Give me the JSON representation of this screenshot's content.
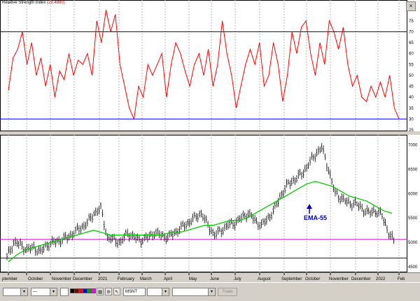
{
  "rsi_title": {
    "name": "Relative Strength Index",
    "value": "(29.4890)"
  },
  "rsi_scale": [
    "80",
    "75",
    "70",
    "65",
    "60",
    "55",
    "50",
    "45",
    "40",
    "35",
    "30",
    "25"
  ],
  "rsi_levels": [
    70,
    30
  ],
  "price_scale": [
    "7000",
    "6500",
    "6000",
    "5500",
    "5000",
    "4500"
  ],
  "price_levels": [
    5060,
    4680
  ],
  "annotation": "EMA-55",
  "months": [
    "ptember",
    "October",
    "November",
    "December",
    "2021",
    "February",
    "March",
    "April",
    "May",
    "June",
    "July",
    "August",
    "September",
    "October",
    "November",
    "December",
    "2022",
    "Feb"
  ],
  "toolbar": {
    "symbol": "MSNT",
    "trade_label": "Trade",
    "window_button": "×"
  },
  "colors": {
    "rsi_line": "#ff0000",
    "ema_line": "#00cc00",
    "level_line": "#0000ff",
    "support_line": "#cc00cc",
    "annotation": "#0000c0"
  },
  "chart_data": [
    {
      "type": "line",
      "title": "Relative Strength Index",
      "series": [
        {
          "name": "Relative Strength Index",
          "values": [
            43,
            58,
            62,
            70,
            55,
            65,
            50,
            58,
            45,
            55,
            40,
            52,
            48,
            60,
            50,
            57,
            55,
            60,
            50,
            75,
            65,
            80,
            70,
            78,
            55,
            45,
            35,
            30,
            45,
            40,
            55,
            50,
            55,
            60,
            40,
            55,
            65,
            60,
            52,
            45,
            55,
            60,
            50,
            62,
            45,
            55,
            75,
            60,
            50,
            35,
            45,
            55,
            62,
            55,
            65,
            45,
            50,
            65,
            55,
            38,
            50,
            70,
            60,
            72,
            75,
            60,
            50,
            65,
            55,
            75,
            70,
            62,
            72,
            55,
            45,
            50,
            40,
            38,
            45,
            40,
            47,
            40,
            50,
            35,
            30
          ]
        }
      ],
      "ylim": [
        25,
        82
      ],
      "levels": [
        70,
        30
      ]
    },
    {
      "type": "line",
      "series": [
        {
          "name": "Price",
          "values": [
            4700,
            5000,
            4950,
            4850,
            4900,
            4800,
            4950,
            5000,
            5050,
            5100,
            5200,
            5300,
            5400,
            5600,
            5700,
            5100,
            5050,
            5000,
            5200,
            5100,
            5050,
            5100,
            5200,
            5150,
            5100,
            5200,
            5300,
            5400,
            5500,
            5600,
            5350,
            5150,
            5250,
            5350,
            5400,
            5500,
            5600,
            5450,
            5350,
            5500,
            5700,
            6000,
            6200,
            6300,
            6400,
            6600,
            6800,
            6950,
            6500,
            6000,
            5900,
            5800,
            5800,
            5700,
            5600,
            5650,
            5550,
            5200,
            4950
          ]
        },
        {
          "name": "EMA-55",
          "values": [
            4600,
            4750,
            4850,
            4900,
            4950,
            5000,
            5050,
            5100,
            5150,
            5200,
            5250,
            5200,
            5150,
            5150,
            5150,
            5150,
            5150,
            5150,
            5150,
            5200,
            5200,
            5250,
            5300,
            5350,
            5350,
            5400,
            5450,
            5450,
            5500,
            5600,
            5700,
            5800,
            5900,
            6000,
            6100,
            6200,
            6250,
            6200,
            6150,
            6050,
            5950,
            5900,
            5850,
            5750,
            5650,
            5600
          ]
        }
      ],
      "ylim": [
        4400,
        7150
      ],
      "levels": [
        5060,
        4680
      ]
    }
  ]
}
